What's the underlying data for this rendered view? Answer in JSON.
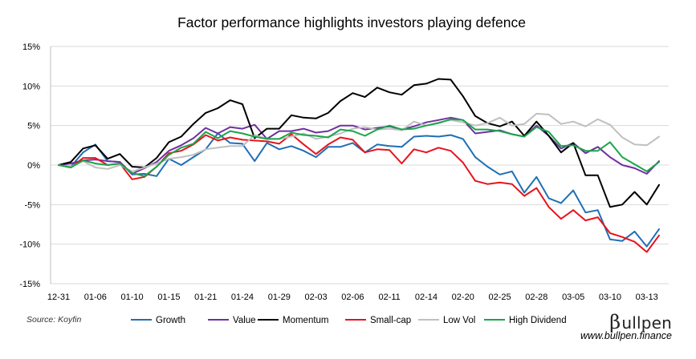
{
  "source": "Source: Koyfin",
  "brand": {
    "symbol": "β",
    "name": "ullpen",
    "url": "www.bullpen.finance"
  },
  "chart_data": {
    "type": "line",
    "title": "Factor performance highlights investors playing defence",
    "xlabel": "",
    "ylabel": "",
    "ylim": [
      -15,
      15
    ],
    "yticks": [
      15,
      10,
      5,
      0,
      -5,
      -10,
      -15
    ],
    "ytick_labels": [
      "15%",
      "10%",
      "5%",
      "0%",
      "-5%",
      "-10%",
      "-15%"
    ],
    "x_tick_labels": [
      "12-31",
      "01-06",
      "01-10",
      "01-15",
      "01-21",
      "01-24",
      "01-29",
      "02-03",
      "02-06",
      "02-11",
      "02-14",
      "02-20",
      "02-25",
      "02-28",
      "03-05",
      "03-10",
      "03-13"
    ],
    "x_tick_indices": [
      0,
      3,
      6,
      9,
      12,
      15,
      18,
      21,
      24,
      27,
      30,
      33,
      36,
      39,
      42,
      45,
      48
    ],
    "grid": "horizontal",
    "legend": "bottom",
    "series": [
      {
        "name": "Growth",
        "color": "#1f6fb5",
        "values": [
          0.0,
          -0.2,
          1.6,
          2.6,
          0.5,
          0.4,
          -1.2,
          -1.1,
          -1.4,
          0.8,
          0.0,
          1.0,
          2.0,
          4.0,
          2.8,
          2.7,
          0.5,
          2.8,
          2.0,
          2.4,
          1.8,
          1.0,
          2.3,
          2.3,
          2.8,
          1.6,
          2.6,
          2.4,
          2.3,
          3.6,
          3.7,
          3.6,
          3.8,
          3.3,
          1.0,
          -0.2,
          -1.2,
          -0.8,
          -3.5,
          -1.5,
          -4.2,
          -4.8,
          -3.2,
          -6.0,
          -5.7,
          -9.4,
          -9.6,
          -8.4,
          -10.3,
          -8.1
        ]
      },
      {
        "name": "Value",
        "color": "#7030a0",
        "values": [
          0.0,
          0.2,
          0.6,
          0.7,
          0.5,
          0.4,
          -1.1,
          -0.4,
          0.4,
          1.8,
          2.5,
          3.4,
          4.7,
          4.0,
          4.8,
          4.6,
          5.1,
          3.3,
          4.3,
          4.3,
          4.6,
          4.1,
          4.3,
          5.0,
          5.0,
          4.5,
          4.7,
          4.9,
          4.5,
          4.9,
          5.4,
          5.7,
          6.0,
          5.7,
          4.0,
          4.2,
          4.4,
          3.9,
          3.6,
          5.0,
          3.7,
          2.1,
          2.8,
          1.5,
          2.3,
          1.0,
          0.0,
          -0.4,
          -1.1,
          0.5
        ]
      },
      {
        "name": "Momentum",
        "color": "#000000",
        "values": [
          0.0,
          0.4,
          2.1,
          2.5,
          0.8,
          1.4,
          -0.2,
          -0.3,
          0.9,
          2.9,
          3.6,
          5.2,
          6.6,
          7.2,
          8.2,
          7.7,
          3.4,
          4.6,
          4.6,
          6.3,
          6.0,
          5.9,
          6.6,
          8.1,
          9.1,
          8.6,
          9.8,
          9.2,
          8.9,
          10.1,
          10.3,
          10.9,
          10.8,
          8.7,
          6.2,
          5.3,
          4.9,
          5.5,
          3.7,
          5.5,
          3.7,
          1.6,
          2.8,
          -1.3,
          -1.3,
          -5.3,
          -5.0,
          -3.4,
          -5.0,
          -2.5
        ]
      },
      {
        "name": "Small-cap",
        "color": "#e8131c",
        "values": [
          0.0,
          -0.3,
          0.9,
          0.9,
          0.0,
          0.2,
          -1.8,
          -1.5,
          -0.2,
          1.5,
          1.8,
          2.6,
          3.8,
          3.1,
          3.5,
          3.2,
          3.1,
          3.0,
          2.7,
          3.9,
          2.6,
          1.4,
          2.6,
          3.5,
          3.2,
          1.6,
          2.0,
          1.9,
          0.2,
          2.0,
          1.6,
          2.2,
          1.8,
          0.3,
          -2.0,
          -2.4,
          -2.2,
          -2.4,
          -3.9,
          -2.9,
          -5.3,
          -6.8,
          -5.7,
          -7.0,
          -6.6,
          -8.6,
          -9.1,
          -9.7,
          -11.0,
          -8.9
        ]
      },
      {
        "name": "Low Vol",
        "color": "#c0c0c0",
        "values": [
          0.0,
          -0.2,
          0.5,
          -0.3,
          -0.5,
          0.0,
          -0.8,
          -0.3,
          0.2,
          0.8,
          1.0,
          1.3,
          2.0,
          2.2,
          2.4,
          2.4,
          3.8,
          3.3,
          3.3,
          3.6,
          4.0,
          3.3,
          3.6,
          4.0,
          4.6,
          4.8,
          4.5,
          4.6,
          4.4,
          5.5,
          5.0,
          5.4,
          5.7,
          5.4,
          5.0,
          5.3,
          6.0,
          5.0,
          5.2,
          6.5,
          6.4,
          5.2,
          5.5,
          4.9,
          5.8,
          5.1,
          3.5,
          2.6,
          2.5,
          3.6
        ]
      },
      {
        "name": "High Dividend",
        "color": "#1aa54b",
        "values": [
          0.0,
          -0.3,
          0.6,
          0.2,
          0.0,
          0.2,
          -1.0,
          -1.4,
          -0.2,
          1.3,
          2.2,
          2.7,
          4.2,
          3.4,
          4.3,
          4.0,
          3.6,
          3.3,
          3.3,
          4.1,
          3.8,
          3.7,
          3.5,
          4.5,
          4.3,
          3.7,
          4.5,
          5.0,
          4.5,
          4.6,
          5.0,
          5.3,
          5.8,
          5.7,
          4.5,
          4.5,
          4.3,
          3.9,
          3.6,
          4.8,
          4.2,
          2.4,
          2.5,
          1.8,
          1.8,
          2.9,
          1.0,
          0.1,
          -0.8,
          0.4
        ]
      }
    ]
  }
}
